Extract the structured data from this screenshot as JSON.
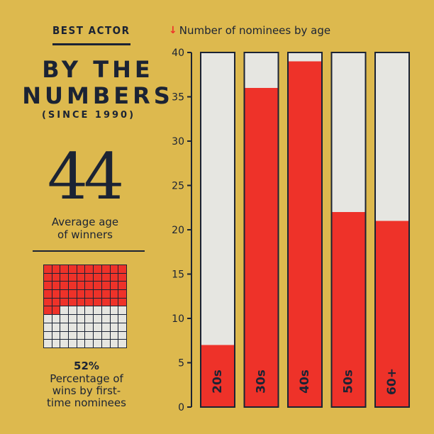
{
  "header": {
    "kicker": "BEST ACTOR",
    "title_line1": "BY THE",
    "title_line2": "NUMBERS",
    "subtitle": "(SINCE 1990)"
  },
  "stats": {
    "average_age_value": "44",
    "average_age_line1": "Average age",
    "average_age_line2": "of winners",
    "first_time_wins_percent": 52,
    "first_time_wins_value": "52%",
    "first_time_wins_line1": "Percentage of",
    "first_time_wins_line2": "wins by first-",
    "first_time_wins_line3": "time nominees"
  },
  "colors": {
    "background": "#DDB94E",
    "accent_red": "#EE3229",
    "bar_empty": "#E6E6E1",
    "ink": "#1B2334"
  },
  "chart_data": {
    "type": "bar",
    "title": "Number of nominees by age",
    "legend_icon": "down-arrow-icon",
    "categories": [
      "20s",
      "30s",
      "40s",
      "50s",
      "60+"
    ],
    "values": [
      7,
      36,
      39,
      22,
      21
    ],
    "ylim": [
      0,
      40
    ],
    "yticks": [
      0,
      5,
      10,
      15,
      20,
      25,
      30,
      35,
      40
    ],
    "grid": false,
    "legend": "top"
  }
}
